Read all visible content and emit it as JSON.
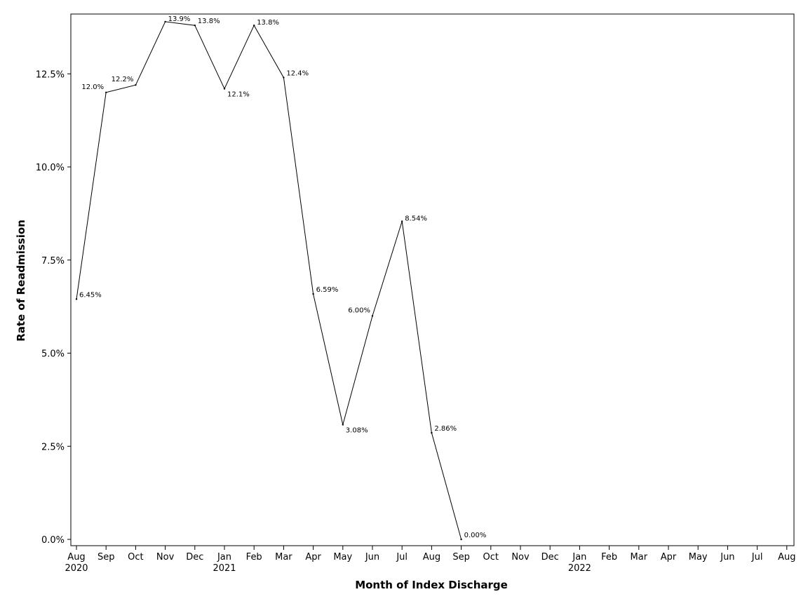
{
  "chart_data": {
    "type": "line",
    "title": "",
    "xlabel": "Month of Index Discharge",
    "ylabel": "Rate of Readmission",
    "x": [
      "2020-08",
      "2020-09",
      "2020-10",
      "2020-11",
      "2020-12",
      "2021-01",
      "2021-02",
      "2021-03",
      "2021-04",
      "2021-05",
      "2021-06",
      "2021-07",
      "2021-08",
      "2021-09"
    ],
    "series": [
      {
        "values": [
          6.45,
          12.0,
          12.2,
          13.9,
          13.8,
          12.1,
          13.8,
          12.4,
          6.59,
          3.08,
          6.0,
          8.54,
          2.86,
          0.0
        ],
        "data_labels": [
          "6.45%",
          "12.0%",
          "12.2%",
          "13.9%",
          "13.8%",
          "12.1%",
          "13.8%",
          "12.4%",
          "6.59%",
          "3.08%",
          "6.00%",
          "8.54%",
          "2.86%",
          "0.00%"
        ]
      }
    ],
    "x_axis": {
      "range": [
        "2020-08",
        "2022-08"
      ],
      "ticks": [
        {
          "month": "2020-08",
          "label": "Aug",
          "year_label": "2020"
        },
        {
          "month": "2020-09",
          "label": "Sep"
        },
        {
          "month": "2020-10",
          "label": "Oct"
        },
        {
          "month": "2020-11",
          "label": "Nov"
        },
        {
          "month": "2020-12",
          "label": "Dec"
        },
        {
          "month": "2021-01",
          "label": "Jan",
          "year_label": "2021"
        },
        {
          "month": "2021-02",
          "label": "Feb"
        },
        {
          "month": "2021-03",
          "label": "Mar"
        },
        {
          "month": "2021-04",
          "label": "Apr"
        },
        {
          "month": "2021-05",
          "label": "May"
        },
        {
          "month": "2021-06",
          "label": "Jun"
        },
        {
          "month": "2021-07",
          "label": "Jul"
        },
        {
          "month": "2021-08",
          "label": "Aug"
        },
        {
          "month": "2021-09",
          "label": "Sep"
        },
        {
          "month": "2021-10",
          "label": "Oct"
        },
        {
          "month": "2021-11",
          "label": "Nov"
        },
        {
          "month": "2021-12",
          "label": "Dec"
        },
        {
          "month": "2022-01",
          "label": "Jan",
          "year_label": "2022"
        },
        {
          "month": "2022-02",
          "label": "Feb"
        },
        {
          "month": "2022-03",
          "label": "Mar"
        },
        {
          "month": "2022-04",
          "label": "Apr"
        },
        {
          "month": "2022-05",
          "label": "May"
        },
        {
          "month": "2022-06",
          "label": "Jun"
        },
        {
          "month": "2022-07",
          "label": "Jul"
        },
        {
          "month": "2022-08",
          "label": "Aug"
        }
      ]
    },
    "y_axis": {
      "ylim": [
        0,
        14
      ],
      "ticks": [
        0,
        2.5,
        5,
        7.5,
        10,
        12.5
      ],
      "tick_labels": [
        "0.0%",
        "2.5%",
        "5.0%",
        "7.5%",
        "10.0%",
        "12.5%"
      ]
    },
    "grid": false,
    "legend": "none",
    "colors": {
      "line": "#000000",
      "frame": "#000000",
      "background": "#ffffff"
    }
  }
}
